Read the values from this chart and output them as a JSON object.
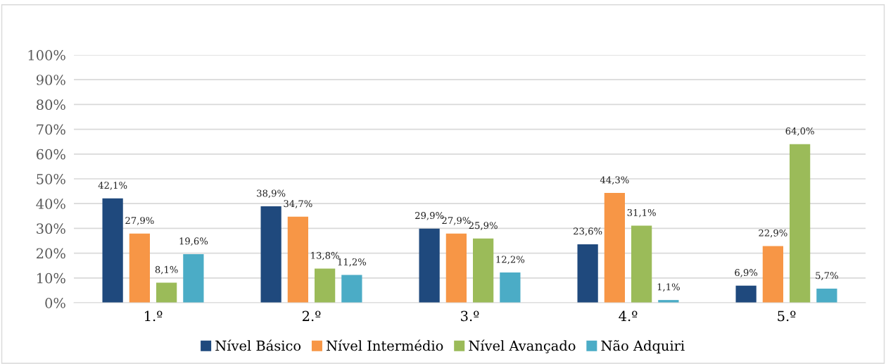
{
  "chart_data": {
    "type": "bar",
    "categories": [
      "1.º",
      "2.º",
      "3.º",
      "4.º",
      "5.º"
    ],
    "series": [
      {
        "name": "Nível Básico",
        "color": "#1f497d",
        "values": [
          42.1,
          38.9,
          29.9,
          23.6,
          6.9
        ],
        "value_labels": [
          "42,1%",
          "38,9%",
          "29,9%",
          "23,6%",
          "6,9%"
        ]
      },
      {
        "name": "Nível Intermédio",
        "color": "#f79646",
        "values": [
          27.9,
          34.7,
          27.9,
          44.3,
          22.9
        ],
        "value_labels": [
          "27,9%",
          "34,7%",
          "27,9%",
          "44,3%",
          "22,9%"
        ]
      },
      {
        "name": "Nível Avançado",
        "color": "#9bbb59",
        "values": [
          8.1,
          13.8,
          25.9,
          31.1,
          64.0
        ],
        "value_labels": [
          "8,1%",
          "13,8%",
          "25,9%",
          "31,1%",
          "64,0%"
        ]
      },
      {
        "name": "Não Adquiri",
        "color": "#4bacc6",
        "values": [
          19.6,
          11.2,
          12.2,
          1.1,
          5.7
        ],
        "value_labels": [
          "19,6%",
          "11,2%",
          "12,2%",
          "1,1%",
          "5,7%"
        ]
      }
    ],
    "ylim": [
      0,
      100
    ],
    "yticks": [
      {
        "value": 0,
        "label": "0%"
      },
      {
        "value": 10,
        "label": "10%"
      },
      {
        "value": 20,
        "label": "20%"
      },
      {
        "value": 30,
        "label": "30%"
      },
      {
        "value": 40,
        "label": "40%"
      },
      {
        "value": 50,
        "label": "50%"
      },
      {
        "value": 60,
        "label": "60%"
      },
      {
        "value": 70,
        "label": "70%"
      },
      {
        "value": 80,
        "label": "80%"
      },
      {
        "value": 90,
        "label": "90%"
      },
      {
        "value": 100,
        "label": "100%"
      }
    ],
    "grid": "y",
    "legend": "bottom"
  }
}
